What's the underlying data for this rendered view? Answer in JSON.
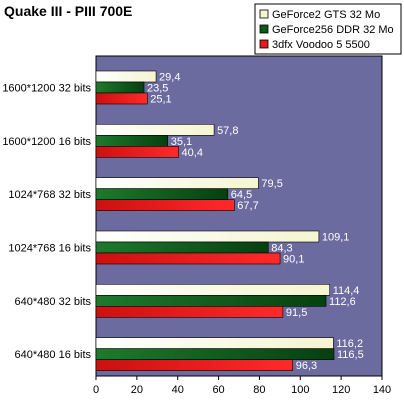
{
  "chart_data": {
    "type": "bar",
    "orientation": "horizontal",
    "title": "Quake III - PIII 700E",
    "categories": [
      "1600*1200 32 bits",
      "1600*1200 16 bits",
      "1024*768 32 bits",
      "1024*768 16 bits",
      "640*480 32 bits",
      "640*480 16 bits"
    ],
    "series": [
      {
        "name": "GeForce2 GTS 32 Mo",
        "values": [
          29.4,
          57.8,
          79.5,
          109.1,
          114.4,
          116.2
        ],
        "labels": [
          "29,4",
          "57,8",
          "79,5",
          "109,1",
          "114,4",
          "116,2"
        ],
        "color": "#f5f5d0"
      },
      {
        "name": "GeForce256 DDR 32 Mo",
        "values": [
          23.5,
          35.1,
          64.5,
          84.3,
          112.6,
          116.5
        ],
        "labels": [
          "23,5",
          "35,1",
          "64,5",
          "84,3",
          "112,6",
          "116,5"
        ],
        "color": "#0c5a18"
      },
      {
        "name": "3dfx Voodoo 5 5500",
        "values": [
          25.1,
          40.4,
          67.7,
          90.1,
          91.5,
          96.3
        ],
        "labels": [
          "25,1",
          "40,4",
          "67,7",
          "90,1",
          "91,5",
          "96,3"
        ],
        "color": "#e41a1c"
      }
    ],
    "xlim": [
      0,
      140
    ],
    "xticks": [
      0,
      20,
      40,
      60,
      80,
      100,
      120,
      140
    ],
    "xlabel": "",
    "ylabel": "",
    "grid": false,
    "legend_position": "top-right",
    "plot_background": "#6b6ba0"
  }
}
